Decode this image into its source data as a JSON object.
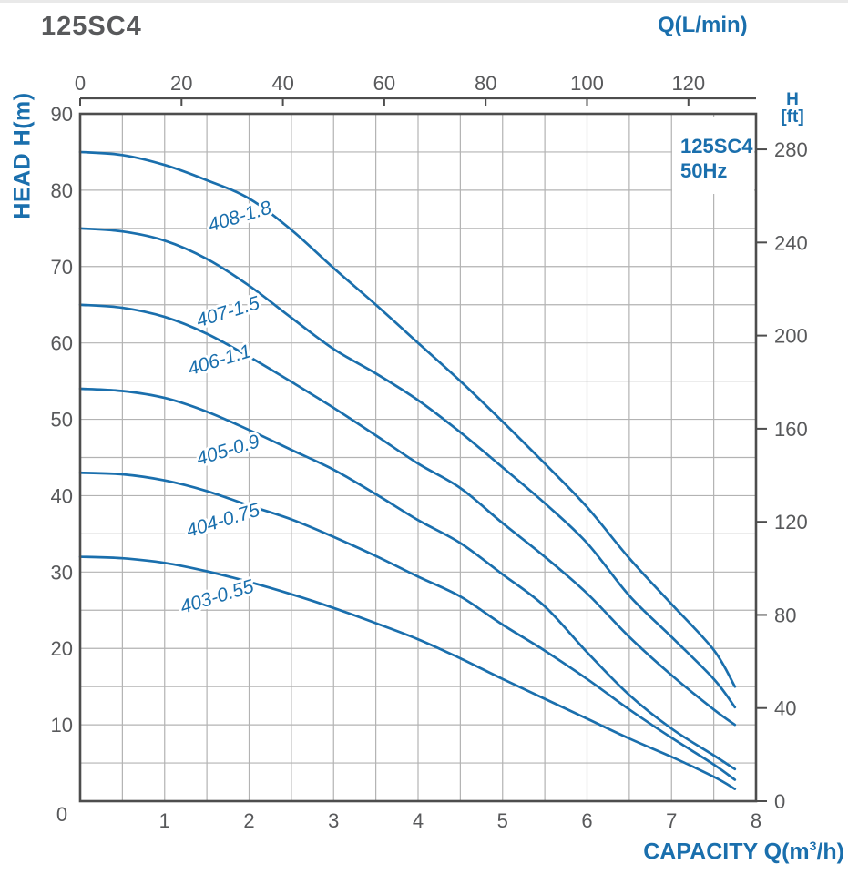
{
  "page": {
    "title": "125SC4",
    "top_axis_label": "Q(L/min)",
    "left_axis_label": "HEAD H(m)",
    "right_axis_label_line1": "H",
    "right_axis_label_line2": "[ft]",
    "bottom_axis_prefix": "CAPACITY Q(m",
    "bottom_axis_sup": "3",
    "bottom_axis_suffix": "/h)",
    "legend_line1": "125SC4",
    "legend_line2": "50Hz",
    "origin_label": "0"
  },
  "colors": {
    "accent_blue": "#1a6fad",
    "curve_blue": "#1a6fad",
    "tick_gray": "#58595b",
    "grid_gray": "#b3b3b3",
    "frame_gray": "#4d4d4d"
  },
  "chart_data": {
    "type": "line",
    "title": "125SC4 pump performance curves, 50Hz",
    "xlabel": "CAPACITY Q(m3/h)",
    "ylabel": "HEAD H(m)",
    "x_axis": {
      "range": [
        0,
        8
      ],
      "ticks": [
        1,
        2,
        3,
        4,
        5,
        6,
        7,
        8
      ],
      "grid_step": 0.5
    },
    "x_axis_top": {
      "label": "Q(L/min)",
      "ticks": [
        0,
        20,
        40,
        60,
        80,
        100,
        120
      ],
      "lmin_per_m3h": 16.6667
    },
    "y_axis": {
      "range": [
        0,
        90
      ],
      "ticks": [
        90,
        80,
        70,
        60,
        50,
        40,
        30,
        20,
        10
      ],
      "grid_step": 5
    },
    "y_axis_right": {
      "label": "H [ft]",
      "ticks": [
        280,
        240,
        200,
        160,
        120,
        80,
        40,
        0
      ],
      "m_per_ft": 0.3048
    },
    "grid": true,
    "legend_position": "top-right",
    "series": [
      {
        "name": "408-1.8",
        "label_pos": [
          1.91,
          75.8
        ],
        "label_angle": -17,
        "points": [
          [
            0,
            85
          ],
          [
            0.5,
            84.6
          ],
          [
            1,
            83.3
          ],
          [
            1.5,
            81.3
          ],
          [
            2,
            78.9
          ],
          [
            2.5,
            74.8
          ],
          [
            3,
            69.8
          ],
          [
            3.5,
            65
          ],
          [
            4,
            60
          ],
          [
            4.5,
            55
          ],
          [
            5,
            49.7
          ],
          [
            5.5,
            44.2
          ],
          [
            6,
            38.5
          ],
          [
            6.5,
            31.8
          ],
          [
            7,
            25.8
          ],
          [
            7.5,
            19.8
          ],
          [
            7.75,
            15
          ]
        ]
      },
      {
        "name": "407-1.5",
        "label_pos": [
          1.77,
          63.3
        ],
        "label_angle": -17,
        "points": [
          [
            0,
            75
          ],
          [
            0.5,
            74.6
          ],
          [
            1,
            73.4
          ],
          [
            1.5,
            71
          ],
          [
            2,
            67.5
          ],
          [
            2.5,
            63.3
          ],
          [
            3,
            59.2
          ],
          [
            3.5,
            56
          ],
          [
            4,
            52.5
          ],
          [
            4.5,
            48.3
          ],
          [
            5,
            43.7
          ],
          [
            5.5,
            39
          ],
          [
            6,
            33.8
          ],
          [
            6.5,
            26.9
          ],
          [
            7,
            21.5
          ],
          [
            7.5,
            16
          ],
          [
            7.75,
            12.3
          ]
        ]
      },
      {
        "name": "406-1.1",
        "label_pos": [
          1.67,
          57.0
        ],
        "label_angle": -17,
        "points": [
          [
            0,
            65
          ],
          [
            0.5,
            64.6
          ],
          [
            1,
            63.4
          ],
          [
            1.5,
            61.2
          ],
          [
            2,
            58.2
          ],
          [
            2.5,
            54.9
          ],
          [
            3,
            51.5
          ],
          [
            3.5,
            47.9
          ],
          [
            4,
            44.2
          ],
          [
            4.5,
            41
          ],
          [
            5,
            36.4
          ],
          [
            5.5,
            32
          ],
          [
            6,
            27.2
          ],
          [
            6.5,
            21.5
          ],
          [
            7,
            16.5
          ],
          [
            7.5,
            12
          ],
          [
            7.75,
            10
          ]
        ]
      },
      {
        "name": "405-0.9",
        "label_pos": [
          1.77,
          45.2
        ],
        "label_angle": -17,
        "points": [
          [
            0,
            54
          ],
          [
            0.5,
            53.7
          ],
          [
            1,
            52.8
          ],
          [
            1.5,
            51
          ],
          [
            2,
            48.6
          ],
          [
            2.5,
            46
          ],
          [
            3,
            43.4
          ],
          [
            3.5,
            40.2
          ],
          [
            4,
            36.8
          ],
          [
            4.5,
            33.8
          ],
          [
            5,
            29.7
          ],
          [
            5.5,
            25.5
          ],
          [
            6,
            19.5
          ],
          [
            6.5,
            13.9
          ],
          [
            7,
            9.5
          ],
          [
            7.5,
            6
          ],
          [
            7.75,
            4.2
          ]
        ]
      },
      {
        "name": "404-0.75",
        "label_pos": [
          1.71,
          36.0
        ],
        "label_angle": -17,
        "points": [
          [
            0,
            43
          ],
          [
            0.5,
            42.8
          ],
          [
            1,
            42
          ],
          [
            1.5,
            40.6
          ],
          [
            2,
            38.7
          ],
          [
            2.5,
            36.9
          ],
          [
            3,
            34.6
          ],
          [
            3.5,
            32.1
          ],
          [
            4,
            29.4
          ],
          [
            4.5,
            26.8
          ],
          [
            5,
            23.1
          ],
          [
            5.5,
            19.7
          ],
          [
            6,
            16
          ],
          [
            6.5,
            12
          ],
          [
            7,
            8.3
          ],
          [
            7.5,
            4.8
          ],
          [
            7.75,
            2.8
          ]
        ]
      },
      {
        "name": "403-0.55",
        "label_pos": [
          1.64,
          26.0
        ],
        "label_angle": -17,
        "points": [
          [
            0,
            32
          ],
          [
            0.5,
            31.8
          ],
          [
            1,
            31.2
          ],
          [
            1.5,
            30.1
          ],
          [
            2,
            28.7
          ],
          [
            2.5,
            27.1
          ],
          [
            3,
            25.3
          ],
          [
            3.5,
            23.3
          ],
          [
            4,
            21.2
          ],
          [
            4.5,
            18.7
          ],
          [
            5,
            16
          ],
          [
            5.5,
            13.4
          ],
          [
            6,
            10.8
          ],
          [
            6.5,
            8.2
          ],
          [
            7,
            5.8
          ],
          [
            7.5,
            3.2
          ],
          [
            7.75,
            1.6
          ]
        ]
      }
    ],
    "annotations": [
      "125SC4",
      "50Hz"
    ]
  }
}
